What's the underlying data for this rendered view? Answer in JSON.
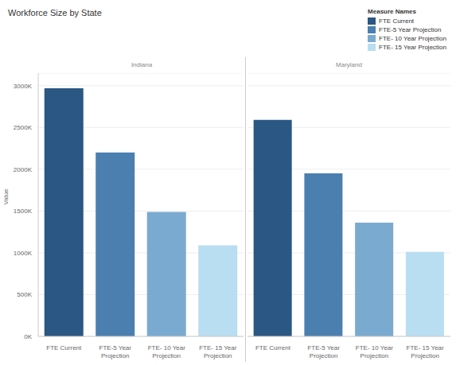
{
  "title": "Workforce Size by State",
  "y_label": "Value",
  "legend_title": "Measure Names",
  "legend": "upper right",
  "chart_data": [
    {
      "type": "bar",
      "title": "Indiana",
      "categories": [
        "FTE Current",
        "FTE-5 Year Projection",
        "FTE- 10 Year Projection",
        "FTE- 15 Year Projection"
      ],
      "values": [
        2970000,
        2200000,
        1490000,
        1090000
      ],
      "colors": [
        "#2a5783",
        "#4a7fb0",
        "#7aaad0",
        "#b9ddf1"
      ],
      "ylim": [
        0,
        3150000
      ],
      "yticks": [
        {
          "value": 0,
          "label": "0K"
        },
        {
          "value": 500000,
          "label": "500K"
        },
        {
          "value": 1000000,
          "label": "1000K"
        },
        {
          "value": 1500000,
          "label": "1500K"
        },
        {
          "value": 2000000,
          "label": "2000K"
        },
        {
          "value": 2500000,
          "label": "2500K"
        },
        {
          "value": 3000000,
          "label": "3000K"
        }
      ],
      "grid": true
    },
    {
      "type": "bar",
      "title": "Maryland",
      "categories": [
        "FTE Current",
        "FTE-5 Year Projection",
        "FTE- 10 Year Projection",
        "FTE- 15 Year Projection"
      ],
      "values": [
        2590000,
        1950000,
        1360000,
        1010000
      ],
      "colors": [
        "#2a5783",
        "#4a7fb0",
        "#7aaad0",
        "#b9ddf1"
      ],
      "ylim": [
        0,
        3150000
      ],
      "yticks": [
        {
          "value": 0,
          "label": "0K"
        },
        {
          "value": 500000,
          "label": "500K"
        },
        {
          "value": 1000000,
          "label": "1000K"
        },
        {
          "value": 1500000,
          "label": "1500K"
        },
        {
          "value": 2000000,
          "label": "2000K"
        },
        {
          "value": 2500000,
          "label": "2500K"
        },
        {
          "value": 3000000,
          "label": "3000K"
        }
      ],
      "grid": true
    }
  ]
}
